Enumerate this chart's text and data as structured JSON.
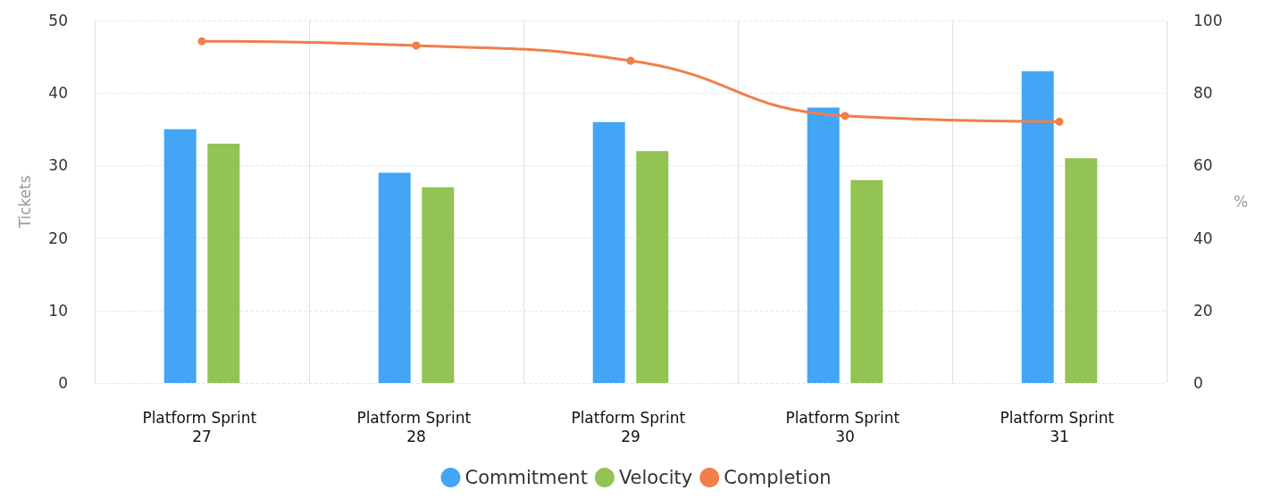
{
  "chart_data": {
    "type": "bar",
    "categories": [
      "Platform Sprint 27",
      "Platform Sprint 28",
      "Platform Sprint 29",
      "Platform Sprint 30",
      "Platform Sprint 31"
    ],
    "series": [
      {
        "name": "Commitment",
        "color": "#42a5f5",
        "values": [
          35,
          29,
          36,
          38,
          43
        ]
      },
      {
        "name": "Velocity",
        "color": "#92c353",
        "values": [
          33,
          27,
          32,
          28,
          31
        ]
      },
      {
        "name": "Completion",
        "type": "line",
        "axis": "y2",
        "color": "#f07f4a",
        "values": [
          94.3,
          93.1,
          88.9,
          73.7,
          72.1
        ]
      }
    ],
    "ylabel": "Tickets",
    "y2label": "%",
    "ylim": [
      0,
      50
    ],
    "yticks": [
      0,
      10,
      20,
      30,
      40,
      50
    ],
    "y2lim": [
      0,
      100
    ],
    "y2ticks": [
      0,
      20,
      40,
      60,
      80,
      100
    ],
    "grid": true,
    "legend": "bottom",
    "marker": "circle",
    "line_style": "solid"
  }
}
